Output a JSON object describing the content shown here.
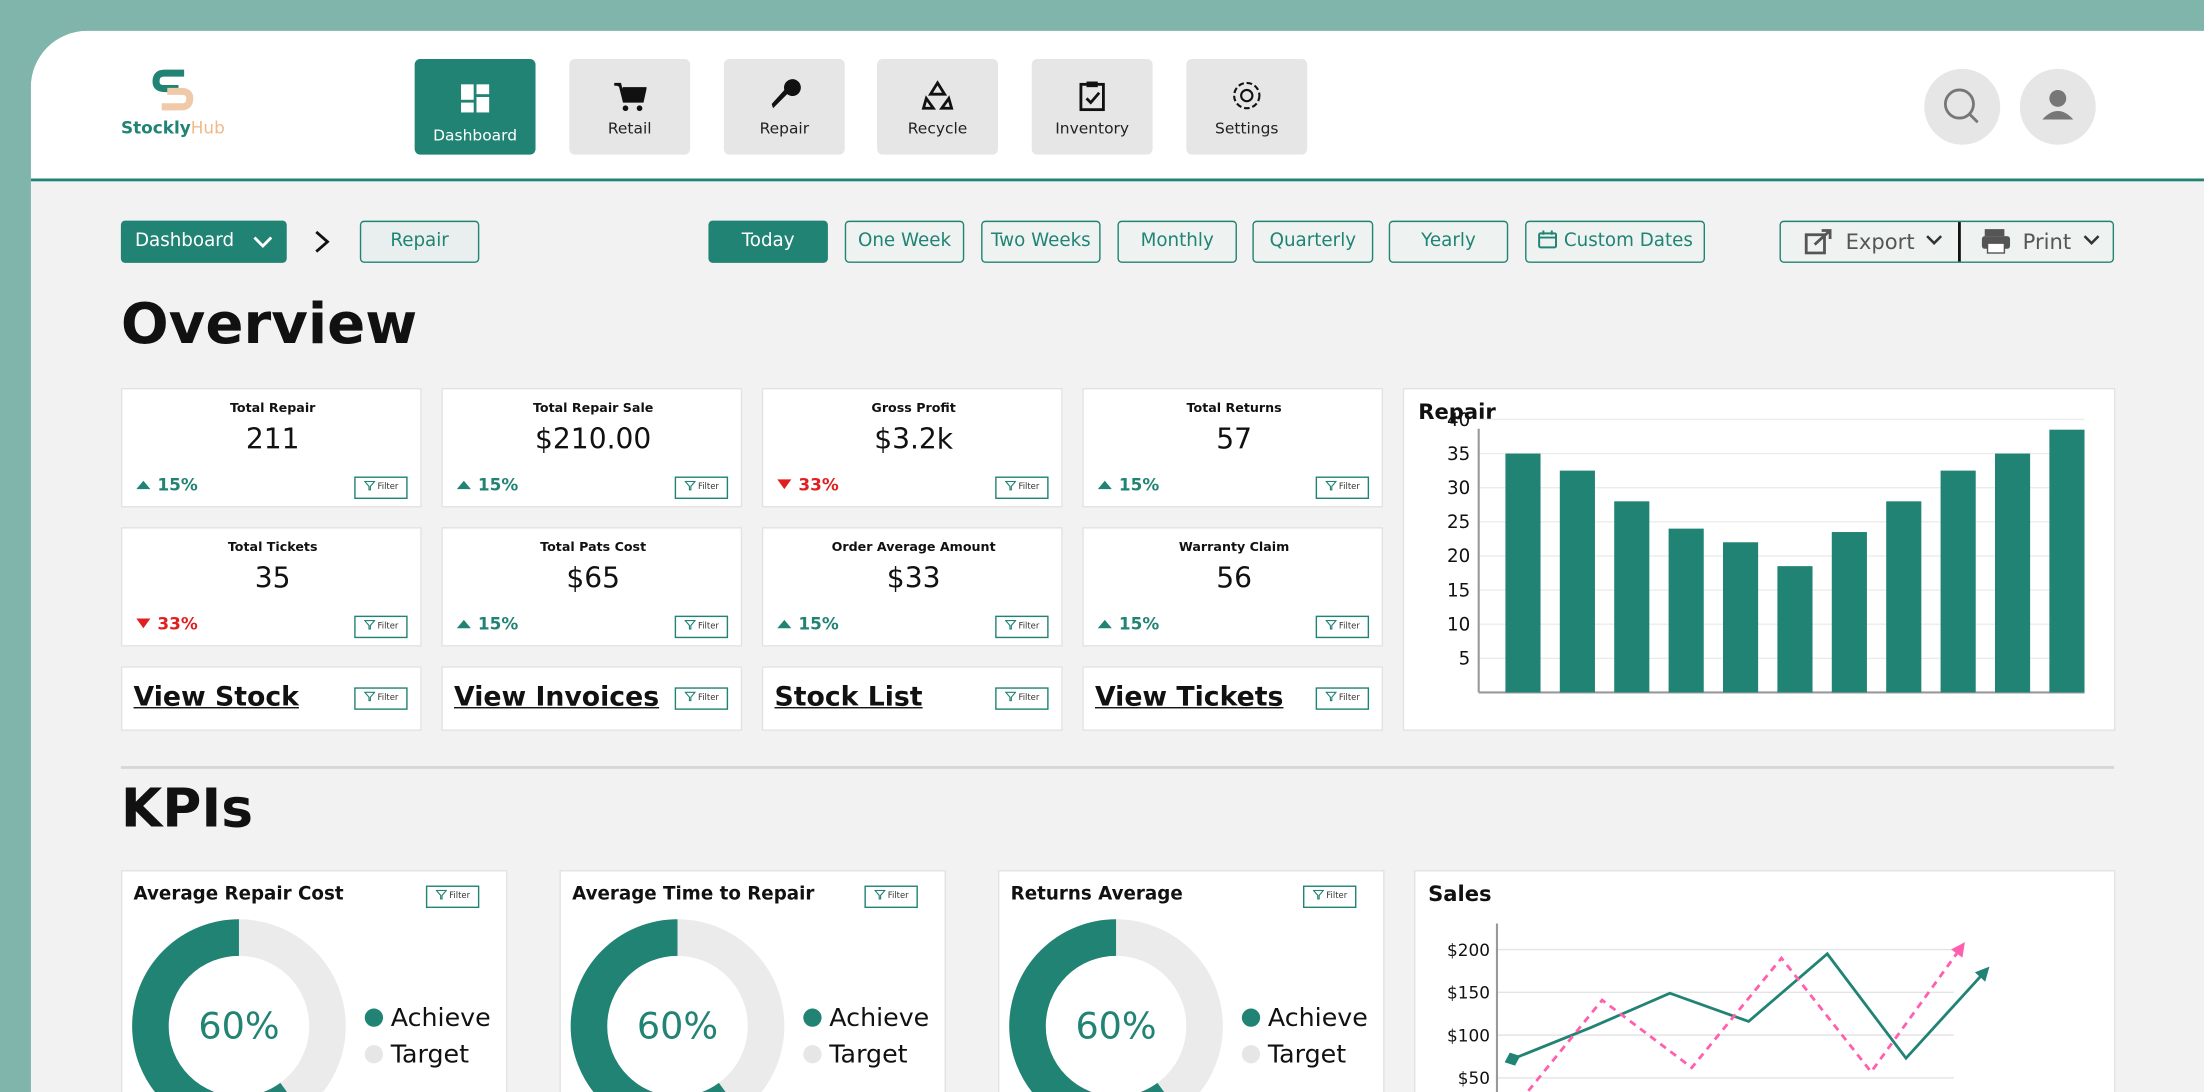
{
  "logo": {
    "brand": "Stockly",
    "suffix": "Hub"
  },
  "nav": [
    "Dashboard",
    "Retail",
    "Repair",
    "Recycle",
    "Inventory",
    "Settings"
  ],
  "breadcrumb": {
    "current": "Dashboard",
    "child": "Repair"
  },
  "ranges": [
    "Today",
    "One Week",
    "Two Weeks",
    "Monthly",
    "Quarterly",
    "Yearly",
    "Custom Dates"
  ],
  "actions": [
    "Export",
    "Print"
  ],
  "overview": {
    "title": "Overview",
    "filter": "Filter",
    "cards": [
      {
        "label": "Total Repair",
        "value": "211",
        "change": "15%",
        "direction": "up"
      },
      {
        "label": "Total Repair Sale",
        "value": "$210.00",
        "change": "15%",
        "direction": "up"
      },
      {
        "label": "Gross Profit",
        "value": "$3.2k",
        "change": "33%",
        "direction": "down"
      },
      {
        "label": "Total Returns",
        "value": "57",
        "change": "15%",
        "direction": "up"
      },
      {
        "label": "Total Tickets",
        "value": "35",
        "change": "33%",
        "direction": "down"
      },
      {
        "label": "Total Pats Cost",
        "value": "$65",
        "change": "15%",
        "direction": "up"
      },
      {
        "label": "Order Average Amount",
        "value": "$33",
        "change": "15%",
        "direction": "up"
      },
      {
        "label": "Warranty Claim",
        "value": "56",
        "change": "15%",
        "direction": "up"
      }
    ],
    "links": [
      "View Stock",
      "View Invoices",
      "Stock List",
      "View Tickets"
    ]
  },
  "repair_chart": {
    "type": "bar",
    "title": "Repair",
    "color": "#218374",
    "values": [
      35,
      32.5,
      28,
      24,
      22,
      18.5,
      23.5,
      28,
      32.5,
      35,
      38.5
    ],
    "ylim": [
      0,
      40
    ],
    "yticks": [
      5,
      10,
      15,
      20,
      25,
      30,
      35,
      40
    ],
    "grid": true
  },
  "kpis": {
    "title": "KPIs",
    "filter": "Filter",
    "legend": [
      "Achieve",
      "Target"
    ],
    "donuts": [
      {
        "type": "donut",
        "title": "Average Repair Cost",
        "value": 60,
        "value_label": "60%"
      },
      {
        "type": "donut",
        "title": "Average Time to Repair",
        "value": 60,
        "value_label": "60%"
      },
      {
        "type": "donut",
        "title": "Returns Average",
        "value": 60,
        "value_label": "60%"
      }
    ]
  },
  "sales_chart": {
    "type": "line",
    "title": "Sales",
    "ylim": [
      0,
      230
    ],
    "yticks": [
      {
        "value": 50,
        "label": "$50"
      },
      {
        "value": 100,
        "label": "$100"
      },
      {
        "value": 150,
        "label": "$150"
      },
      {
        "value": 200,
        "label": "$200"
      }
    ],
    "grid": true,
    "series": [
      {
        "color": "#218374",
        "dash": false,
        "values": [
          72,
          109,
          149,
          116,
          195,
          73,
          174
        ]
      },
      {
        "color": "#ff5fae",
        "dash": true,
        "values": [
          12,
          141,
          62,
          190,
          57,
          202
        ]
      }
    ]
  }
}
